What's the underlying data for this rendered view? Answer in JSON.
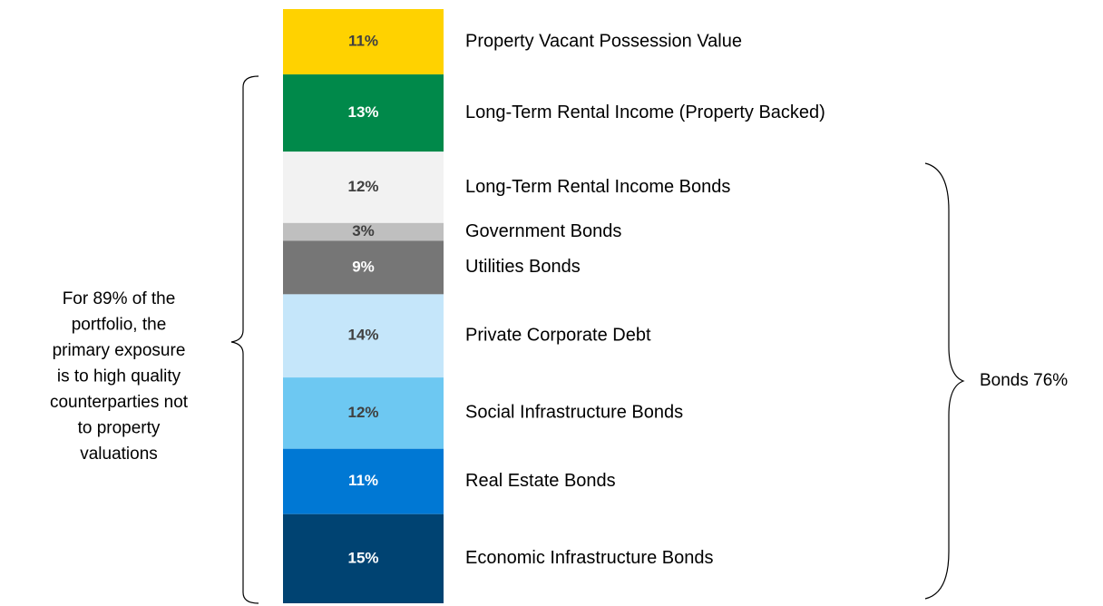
{
  "chart_data": {
    "type": "stacked_bar",
    "categories": [
      "Property Vacant Possession Value",
      "Long-Term Rental Income (Property Backed)",
      "Long-Term Rental Income Bonds",
      "Government Bonds",
      "Utilities Bonds",
      "Private Corporate Debt",
      "Social Infrastructure Bonds",
      "Real Estate Bonds",
      "Economic Infrastructure Bonds"
    ],
    "values": [
      11,
      13,
      12,
      3,
      9,
      14,
      12,
      11,
      15
    ],
    "value_labels": [
      "11%",
      "13%",
      "12%",
      "3%",
      "9%",
      "14%",
      "12%",
      "11%",
      "15%"
    ],
    "colors": [
      "#FFD200",
      "#00894A",
      "#F2F2F2",
      "#BFBFBF",
      "#767676",
      "#C5E6FA",
      "#6DC8F2",
      "#0078D4",
      "#004372"
    ],
    "ylim": [
      0,
      100
    ],
    "annotations": {
      "left_note": [
        "For 89% of the",
        "portfolio, the",
        "primary exposure",
        "is to high quality",
        "counterparties not",
        "to property",
        "valuations"
      ],
      "right_note": "Bonds 76%"
    }
  }
}
